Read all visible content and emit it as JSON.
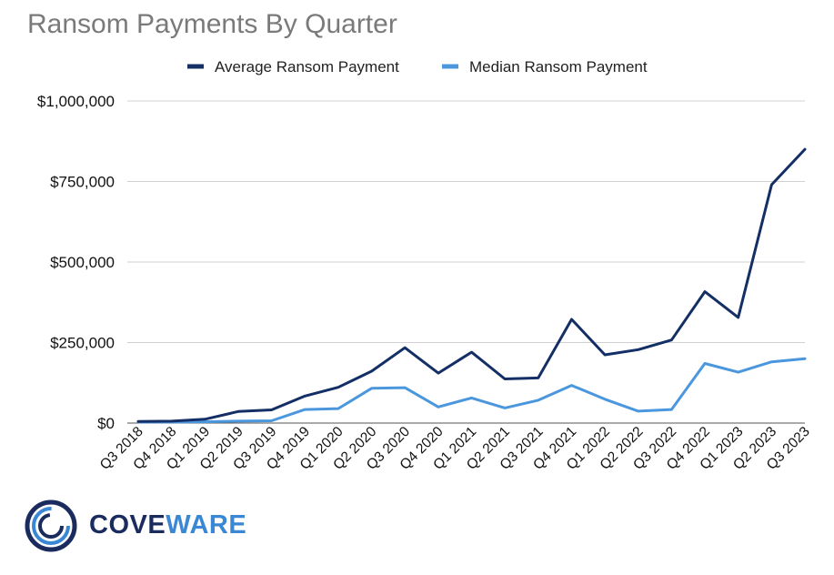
{
  "title": "Ransom Payments By Quarter",
  "logo": {
    "part1": "COVE",
    "part2": "WARE",
    "color1": "#1a2b5e",
    "color2": "#3a87d4"
  },
  "colors": {
    "average": "#142f66",
    "median": "#4b97de",
    "grid": "#d0d0d0"
  },
  "chart_data": {
    "type": "line",
    "title": "Ransom Payments By Quarter",
    "legend_position": "top",
    "grid": true,
    "categories": [
      "Q3 2018",
      "Q4 2018",
      "Q1 2019",
      "Q2 2019",
      "Q3 2019",
      "Q4 2019",
      "Q1 2020",
      "Q2 2020",
      "Q3 2020",
      "Q4 2020",
      "Q1 2021",
      "Q2 2021",
      "Q3 2021",
      "Q4 2021",
      "Q1 2022",
      "Q2 2022",
      "Q3 2022",
      "Q4 2022",
      "Q1 2023",
      "Q2 2023",
      "Q3 2023"
    ],
    "ylim": [
      0,
      1000000
    ],
    "yticks": [
      0,
      250000,
      500000,
      750000,
      1000000
    ],
    "ytick_labels": [
      "$0",
      "$250,000",
      "$500,000",
      "$750,000",
      "$1,000,000"
    ],
    "series": [
      {
        "name": "Average Ransom Payment",
        "color": "#142f66",
        "values": [
          5000,
          6000,
          12000,
          36000,
          41000,
          84000,
          111000,
          161000,
          234000,
          155000,
          220000,
          137000,
          140000,
          322000,
          212000,
          228000,
          258000,
          408000,
          328000,
          740000,
          850000
        ]
      },
      {
        "name": "Median Ransom Payment",
        "color": "#4b97de",
        "values": [
          3000,
          3000,
          4000,
          6000,
          7000,
          42000,
          45000,
          108000,
          110000,
          50000,
          78000,
          47000,
          71000,
          117000,
          74000,
          37000,
          42000,
          185000,
          158000,
          190000,
          200000
        ]
      }
    ]
  }
}
